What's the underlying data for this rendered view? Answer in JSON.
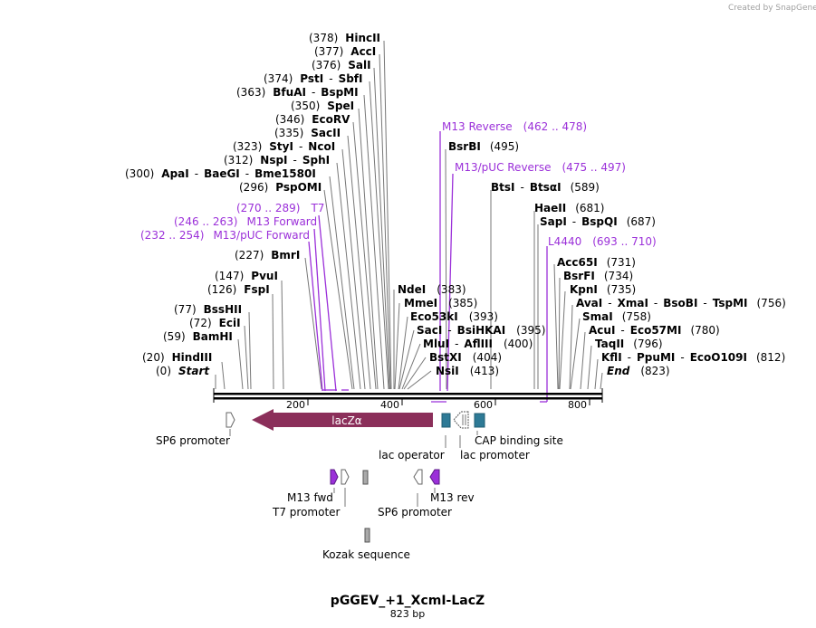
{
  "credit": "Created by SnapGene",
  "title": "pGGEV_+1_XcmI-LacZ",
  "length_label": "823 bp",
  "sequence_length": 823,
  "ruler_ticks": [
    "200",
    "400",
    "600",
    "800"
  ],
  "colors": {
    "primer": "#9b30d9",
    "lacz": "#8b2f5a",
    "operator": "#2e7a96",
    "backbone": "#000000"
  },
  "enzymes": [
    {
      "pos": "(378)",
      "name": "HincII"
    },
    {
      "pos": "(377)",
      "name": "AccI"
    },
    {
      "pos": "(376)",
      "name": "SalI"
    },
    {
      "pos": "(374)",
      "name": "PstI",
      "sep": "-",
      "name2": "SbfI"
    },
    {
      "pos": "(363)",
      "name": "BfuAI",
      "sep": "-",
      "name2": "BspMI"
    },
    {
      "pos": "(350)",
      "name": "SpeI"
    },
    {
      "pos": "(346)",
      "name": "EcoRV"
    },
    {
      "pos": "(335)",
      "name": "SacII"
    },
    {
      "pos": "(323)",
      "name": "StyI",
      "sep": "-",
      "name2": "NcoI"
    },
    {
      "pos": "(312)",
      "name": "NspI",
      "sep": "-",
      "name2": "SphI"
    },
    {
      "pos": "(300)",
      "name": "ApaI",
      "sep": "-",
      "name2": "BaeGI",
      "sep2": "-",
      "name3": "Bme1580I"
    },
    {
      "pos": "(296)",
      "name": "PspOMI"
    },
    {
      "pos": "(227)",
      "name": "BmrI"
    },
    {
      "pos": "(147)",
      "name": "PvuI"
    },
    {
      "pos": "(126)",
      "name": "FspI"
    },
    {
      "pos": "(77)",
      "name": "BssHII"
    },
    {
      "pos": "(72)",
      "name": "EciI"
    },
    {
      "pos": "(59)",
      "name": "BamHI"
    },
    {
      "pos": "(20)",
      "name": "HindIII"
    },
    {
      "pos": "(0)",
      "name": "Start"
    },
    {
      "name": "BsrBI",
      "pos": "(495)"
    },
    {
      "name": "BtsI",
      "sep": "-",
      "name2": "BtsαI",
      "pos": "(589)"
    },
    {
      "name": "HaeII",
      "pos": "(681)"
    },
    {
      "name": "SapI",
      "sep": "-",
      "name2": "BspQI",
      "pos": "(687)"
    },
    {
      "name": "Acc65I",
      "pos": "(731)"
    },
    {
      "name": "BsrFI",
      "pos": "(734)"
    },
    {
      "name": "KpnI",
      "pos": "(735)"
    },
    {
      "name": "AvaI",
      "sep": "-",
      "name2": "XmaI",
      "sep2": "-",
      "name3": "BsoBI",
      "sep3": "-",
      "name4": "TspMI",
      "pos": "(756)"
    },
    {
      "name": "SmaI",
      "pos": "(758)"
    },
    {
      "name": "AcuI",
      "sep": "-",
      "name2": "Eco57MI",
      "pos": "(780)"
    },
    {
      "name": "TaqII",
      "pos": "(796)"
    },
    {
      "name": "KflI",
      "sep": "-",
      "name2": "PpuMI",
      "sep2": "-",
      "name3": "EcoO109I",
      "pos": "(812)"
    },
    {
      "name": "End",
      "pos": "(823)"
    },
    {
      "name": "NdeI",
      "pos": "(383)"
    },
    {
      "name": "MmeI",
      "pos": "(385)"
    },
    {
      "name": "Eco53kI",
      "pos": "(393)"
    },
    {
      "name": "SacI",
      "sep": "-",
      "name2": "BsiHKAI",
      "pos": "(395)"
    },
    {
      "name": "MluI",
      "sep": "-",
      "name2": "AflIII",
      "pos": "(400)"
    },
    {
      "name": "BstXI",
      "pos": "(404)"
    },
    {
      "name": "NsiI",
      "pos": "(413)"
    }
  ],
  "primers": [
    {
      "name": "M13 Reverse",
      "range": "(462 .. 478)"
    },
    {
      "name": "M13/pUC Reverse",
      "range": "(475 .. 497)"
    },
    {
      "name": "T7",
      "range": "(270 .. 289)"
    },
    {
      "name": "M13 Forward",
      "range": "(246 .. 263)"
    },
    {
      "name": "M13/pUC Forward",
      "range": "(232 .. 254)"
    },
    {
      "name": "L4440",
      "range": "(693 .. 710)"
    }
  ],
  "features": {
    "sp6_promoter_top": "SP6 promoter",
    "lacz": "lacZα",
    "lac_operator": "lac operator",
    "lac_promoter": "lac promoter",
    "cap_site": "CAP binding site",
    "m13_fwd": "M13 fwd",
    "t7_promoter": "T7 promoter",
    "sp6_promoter_bottom": "SP6 promoter",
    "m13_rev": "M13 rev",
    "kozak": "Kozak sequence"
  }
}
